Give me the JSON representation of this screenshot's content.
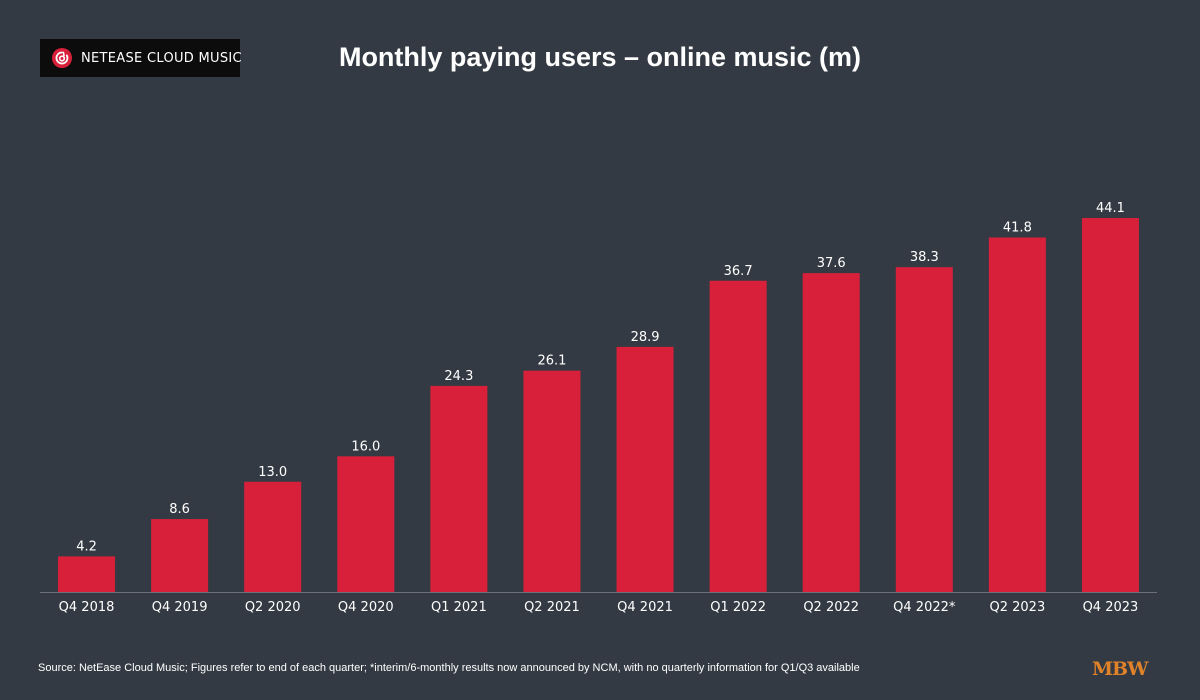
{
  "logo": {
    "text": "NETEASE CLOUD MUSIC",
    "icon": "netease-cloud-music-icon"
  },
  "footer": {
    "source": "Source: NetEase Cloud Music; Figures refer to end of each quarter; *interim/6-monthly results now announced by NCM, with no quarterly information for Q1/Q3 available",
    "brand": "MBW"
  },
  "colors": {
    "background": "#343a43",
    "bar": "#d9203a",
    "text": "#ffffff",
    "baseline": "#6b7078",
    "brand": "#e0822a"
  },
  "chart_data": {
    "type": "bar",
    "title": "Monthly paying users – online music (m)",
    "xlabel": "",
    "ylabel": "",
    "categories": [
      "Q4 2018",
      "Q4 2019",
      "Q2 2020",
      "Q4 2020",
      "Q1 2021",
      "Q2 2021",
      "Q4 2021",
      "Q1 2022",
      "Q2 2022",
      "Q4 2022*",
      "Q2 2023",
      "Q4 2023"
    ],
    "values": [
      4.2,
      8.6,
      13.0,
      16.0,
      24.3,
      26.1,
      28.9,
      36.7,
      37.6,
      38.3,
      41.8,
      44.1
    ],
    "value_labels": [
      "4.2",
      "8.6",
      "13.0",
      "16.0",
      "24.3",
      "26.1",
      "28.9",
      "36.7",
      "37.6",
      "38.3",
      "41.8",
      "44.1"
    ],
    "ylim": [
      0,
      44.1
    ],
    "grid": false,
    "legend": "none"
  }
}
